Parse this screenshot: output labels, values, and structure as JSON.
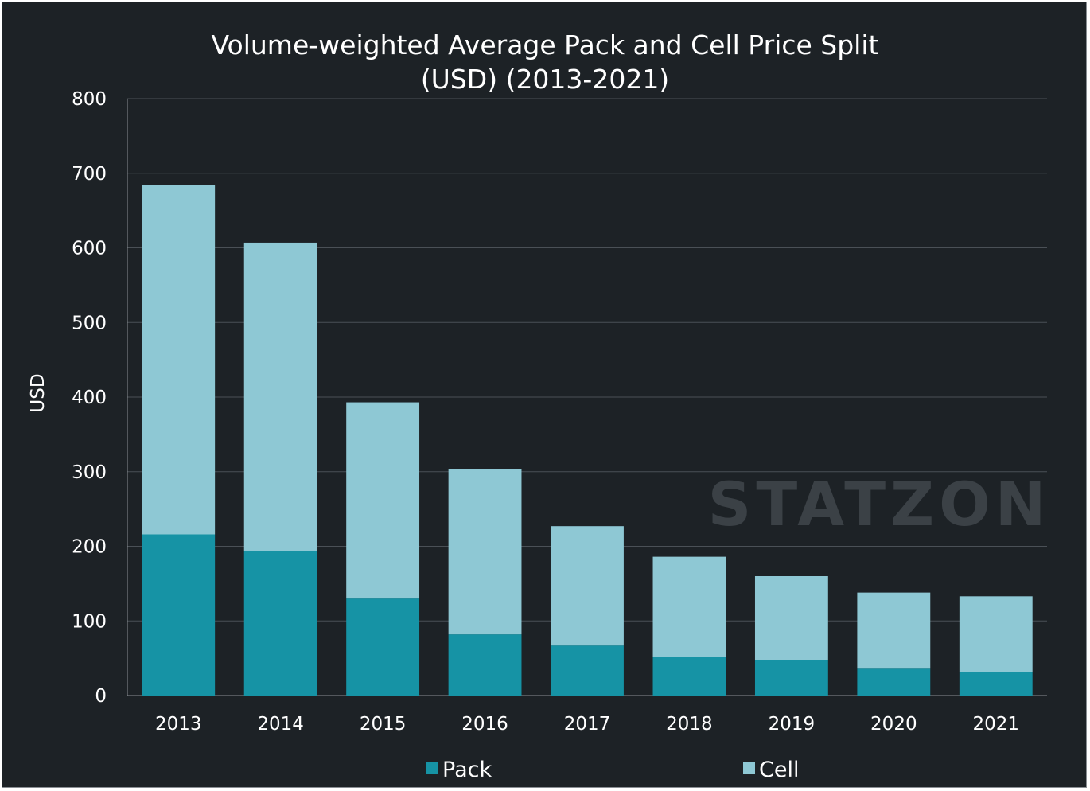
{
  "chart_data": {
    "type": "bar",
    "stacked": true,
    "title_lines": [
      "Volume-weighted Average Pack and Cell Price Split",
      "(USD) (2013-2021)"
    ],
    "ylabel": "USD",
    "xlabel": "",
    "ylim": [
      0,
      800
    ],
    "yticks": [
      0,
      100,
      200,
      300,
      400,
      500,
      600,
      700,
      800
    ],
    "grid": true,
    "legend_position": "bottom",
    "categories": [
      "2013",
      "2014",
      "2015",
      "2016",
      "2017",
      "2018",
      "2019",
      "2020",
      "2021"
    ],
    "series": [
      {
        "name": "Pack",
        "color": "#1693a5",
        "values": [
          216,
          194,
          130,
          82,
          67,
          52,
          48,
          36,
          31
        ]
      },
      {
        "name": "Cell",
        "color": "#8ec8d4",
        "values": [
          468,
          413,
          263,
          222,
          160,
          134,
          112,
          102,
          102
        ]
      }
    ]
  },
  "watermark": "STATZON",
  "colors": {
    "background": "#1d2226",
    "grid": "#4a5056",
    "axis": "#8a8f94"
  }
}
